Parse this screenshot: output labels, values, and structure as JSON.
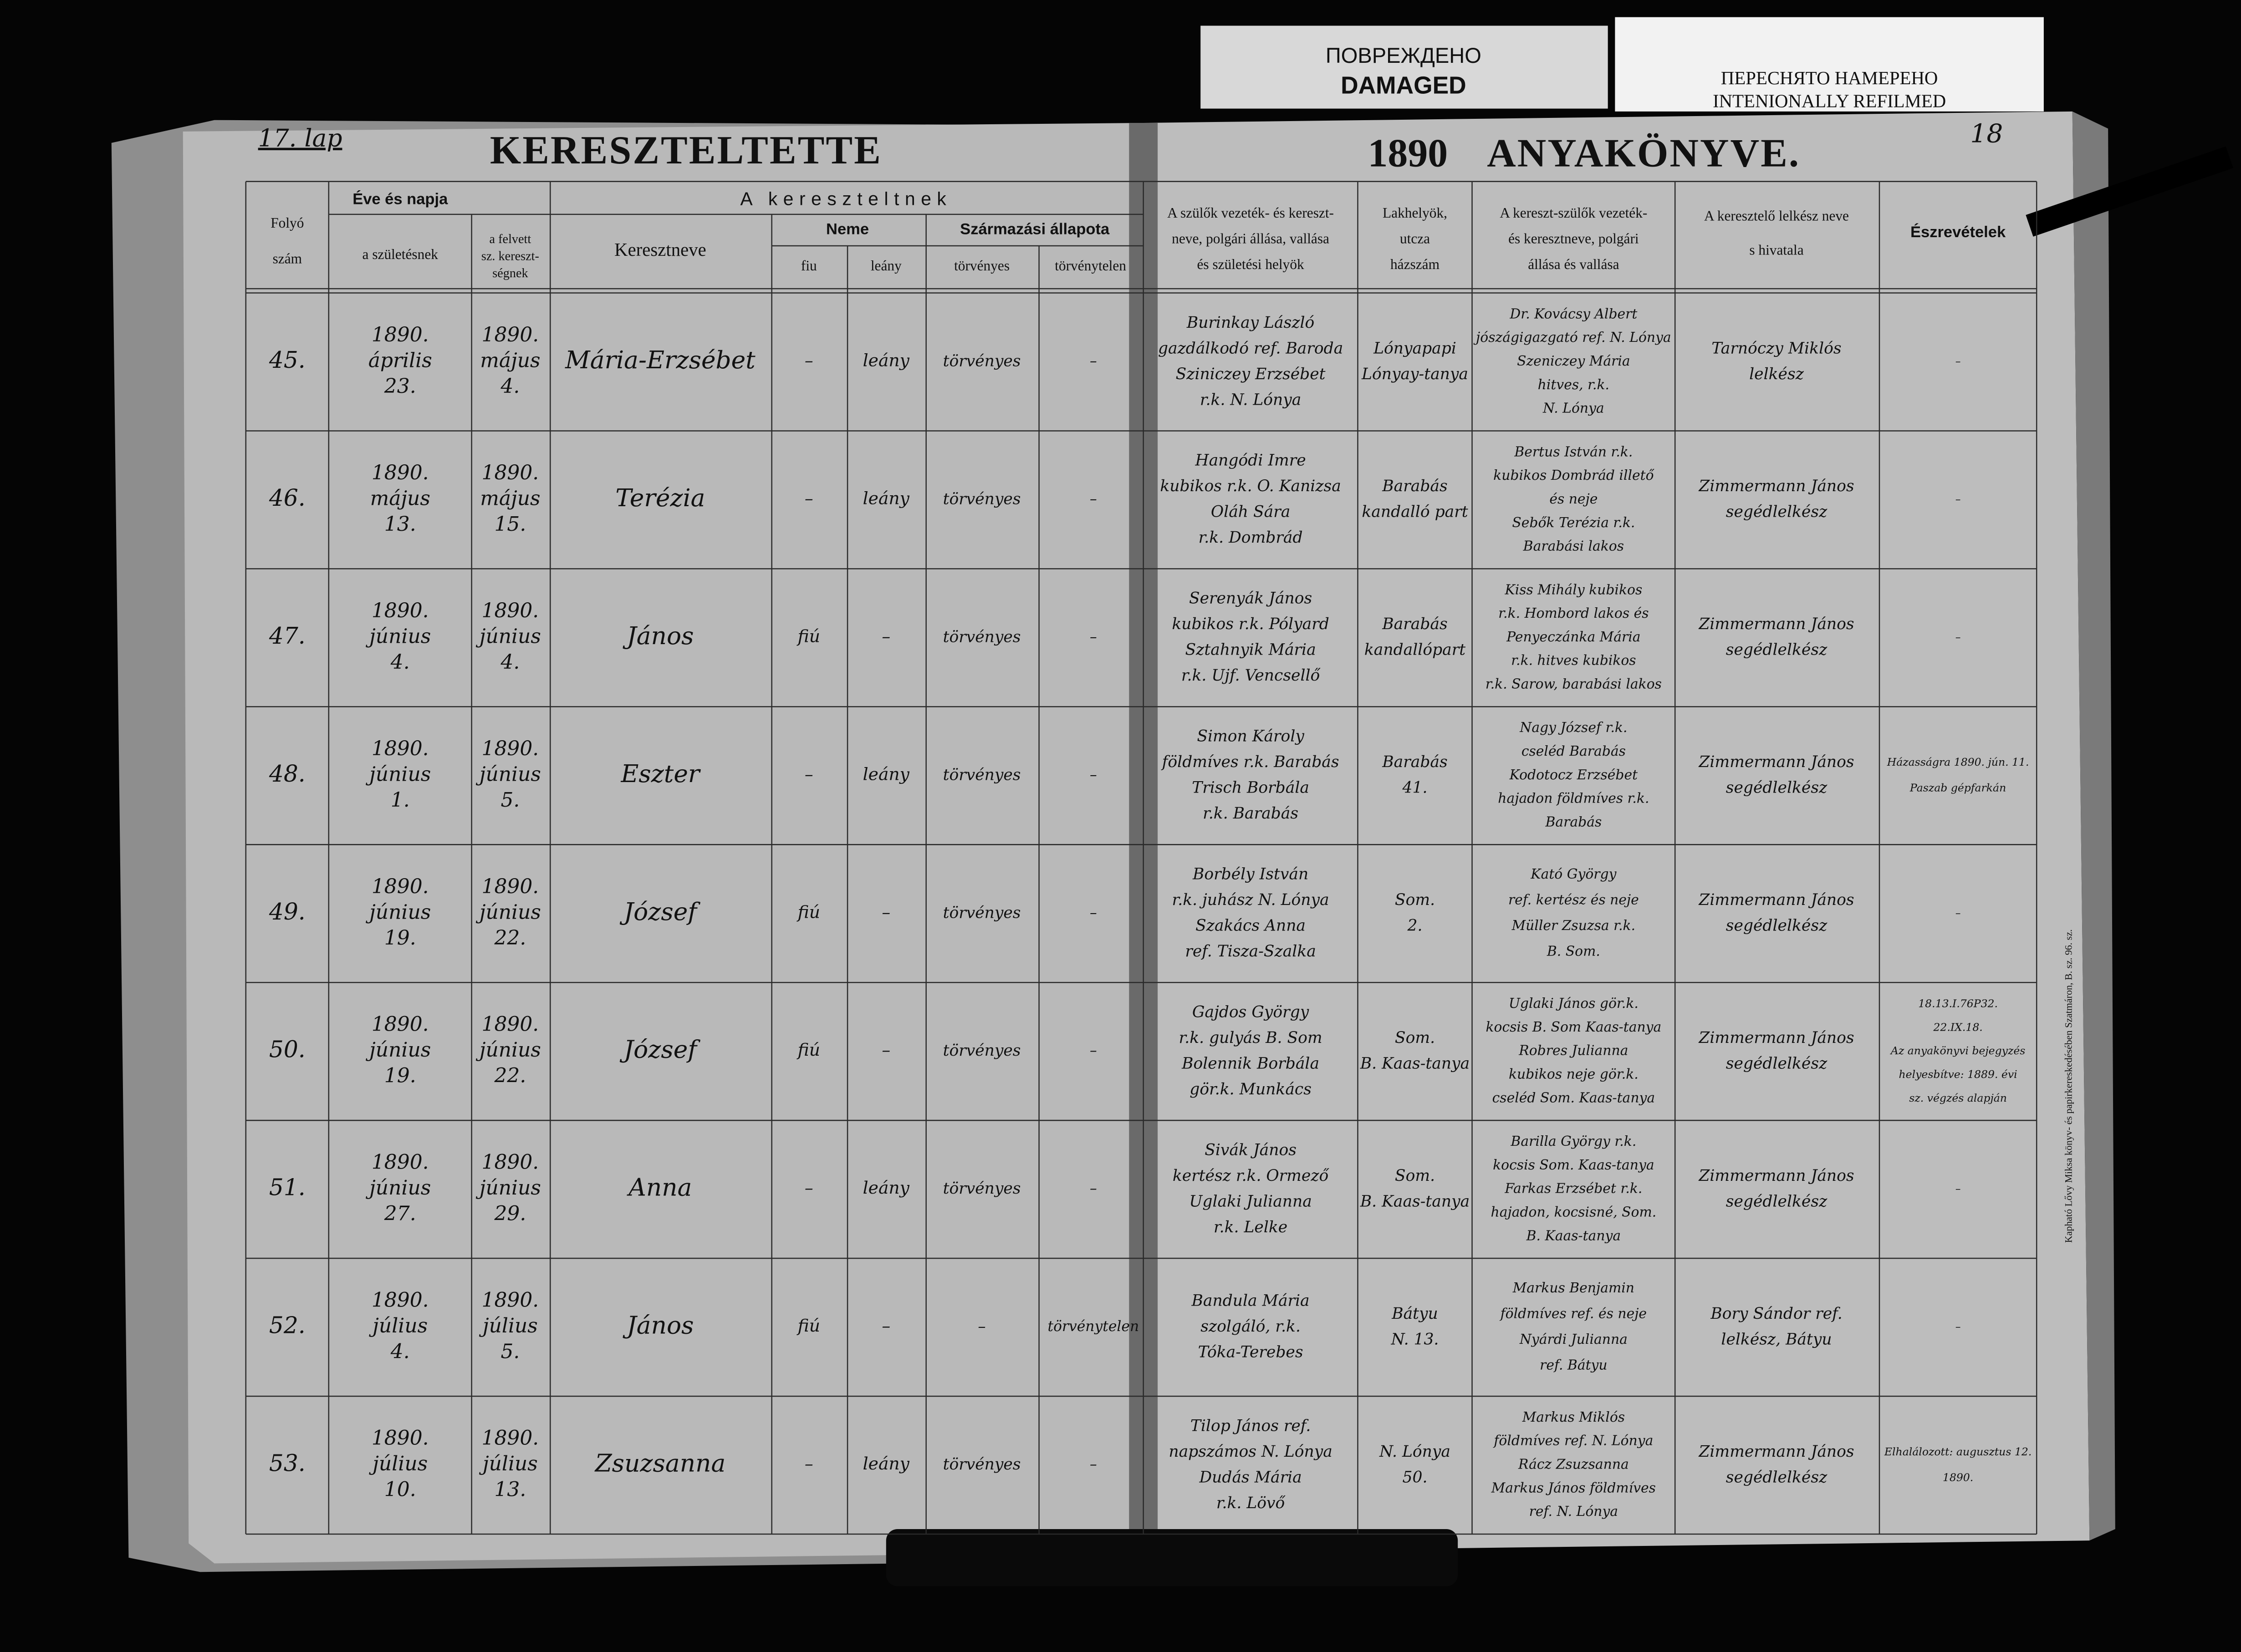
{
  "stamps": {
    "damaged": [
      "ПОВРЕЖДЕНО",
      "DAMAGED"
    ],
    "refilmed": [
      "ПЕРЕСНЯТО НАМЕРЕНО",
      "INTENIONALLY REFILMED"
    ]
  },
  "header": {
    "page_label": "17. lap",
    "title_left": "KERESZTELTETTE",
    "year": "1890",
    "title_right": "ANYAKÖNYVE.",
    "page_mark": "18"
  },
  "column_headers": {
    "number": [
      "Folyó",
      "szám"
    ],
    "date_group": [
      "Éve és napja"
    ],
    "birth": [
      "a születésnek"
    ],
    "baptism": [
      "a felvett",
      "sz. kereszt-",
      "ségnek"
    ],
    "child_group": [
      "A kereszteltnek"
    ],
    "name": [
      "Keresztneve"
    ],
    "sex_group": [
      "Neme"
    ],
    "male": [
      "fiu"
    ],
    "female": [
      "leány"
    ],
    "status_group": [
      "Származási állapota"
    ],
    "legitimate": [
      "törvényes"
    ],
    "illegitimate": [
      "törvénytelen"
    ],
    "parents": [
      "A szülők vezeték- és kereszt-",
      "neve, polgári állása, vallása",
      "és születési helyök"
    ],
    "residence": [
      "Lakhelyök,",
      "utcza",
      "házszám"
    ],
    "godparents": [
      "A kereszt-szülők vezeték-",
      "és keresztneve, polgári",
      "állása és vallása"
    ],
    "priest": [
      "A keresztelő lelkész neve",
      "s hivatala"
    ],
    "notes": [
      "Észrevételek"
    ]
  },
  "rows": [
    {
      "number": "45.",
      "birth": [
        "1890.",
        "április",
        "23."
      ],
      "baptism": [
        "1890.",
        "május",
        "4."
      ],
      "name": "Mária-Erzsébet",
      "male": "–",
      "female": "leány",
      "legitimate": "törvényes",
      "illegitimate": "–",
      "parents": [
        "Burinkay László",
        "gazdálkodó ref. Baroda",
        "Sziniczey Erzsébet",
        "r.k. N. Lónya"
      ],
      "residence": [
        "Lónyapapi",
        "Lónyay-tanya"
      ],
      "godparents": [
        "Dr. Kovácsy Albert",
        "jószágigazgató ref. N. Lónya",
        "Szeniczey Mária",
        "hitves, r.k.",
        "N. Lónya"
      ],
      "priest": [
        "Tarnóczy Miklós",
        "lelkész"
      ],
      "notes": [
        "–"
      ]
    },
    {
      "number": "46.",
      "birth": [
        "1890.",
        "május",
        "13."
      ],
      "baptism": [
        "1890.",
        "május",
        "15."
      ],
      "name": "Terézia",
      "male": "–",
      "female": "leány",
      "legitimate": "törvényes",
      "illegitimate": "–",
      "parents": [
        "Hangódi Imre",
        "kubikos r.k. O. Kanizsa",
        "Oláh Sára",
        "r.k. Dombrád"
      ],
      "residence": [
        "Barabás",
        "kandalló part"
      ],
      "godparents": [
        "Bertus István r.k.",
        "kubikos Dombrád illető",
        "és neje",
        "Sebők Terézia r.k.",
        "Barabási lakos"
      ],
      "priest": [
        "Zimmermann János",
        "segédlelkész"
      ],
      "notes": [
        "–"
      ]
    },
    {
      "number": "47.",
      "birth": [
        "1890.",
        "június",
        "4."
      ],
      "baptism": [
        "1890.",
        "június",
        "4."
      ],
      "name": "János",
      "male": "fiú",
      "female": "–",
      "legitimate": "törvényes",
      "illegitimate": "–",
      "parents": [
        "Serenyák János",
        "kubikos r.k. Pólyard",
        "Sztahnyik Mária",
        "r.k. Ujf. Vencsellő"
      ],
      "residence": [
        "Barabás",
        "kandallópart"
      ],
      "godparents": [
        "Kiss Mihály kubikos",
        "r.k. Hombord lakos és",
        "Penyeczánka Mária",
        "r.k. hitves kubikos",
        "r.k. Sarow, barabási lakos"
      ],
      "priest": [
        "Zimmermann János",
        "segédlelkész"
      ],
      "notes": [
        "–"
      ]
    },
    {
      "number": "48.",
      "birth": [
        "1890.",
        "június",
        "1."
      ],
      "baptism": [
        "1890.",
        "június",
        "5."
      ],
      "name": "Eszter",
      "male": "–",
      "female": "leány",
      "legitimate": "törvényes",
      "illegitimate": "–",
      "parents": [
        "Simon Károly",
        "földmíves r.k. Barabás",
        "Trisch Borbála",
        "r.k. Barabás"
      ],
      "residence": [
        "Barabás",
        "41."
      ],
      "godparents": [
        "Nagy József r.k.",
        "cseléd Barabás",
        "Kodotocz Erzsébet",
        "hajadon földmíves r.k.",
        "Barabás"
      ],
      "priest": [
        "Zimmermann János",
        "segédlelkész"
      ],
      "notes": [
        "Házasságra 1890. jún. 11.",
        "Paszab gépfarkán"
      ]
    },
    {
      "number": "49.",
      "birth": [
        "1890.",
        "június",
        "19."
      ],
      "baptism": [
        "1890.",
        "június",
        "22."
      ],
      "name": "József",
      "male": "fiú",
      "female": "–",
      "legitimate": "törvényes",
      "illegitimate": "–",
      "parents": [
        "Borbély István",
        "r.k. juhász N. Lónya",
        "Szakács Anna",
        "ref. Tisza-Szalka"
      ],
      "residence": [
        "Som.",
        "2."
      ],
      "godparents": [
        "Kató György",
        "ref. kertész és neje",
        "Müller Zsuzsa r.k.",
        "B. Som."
      ],
      "priest": [
        "Zimmermann János",
        "segédlelkész"
      ],
      "notes": [
        "–"
      ]
    },
    {
      "number": "50.",
      "birth": [
        "1890.",
        "június",
        "19."
      ],
      "baptism": [
        "1890.",
        "június",
        "22."
      ],
      "name": "József",
      "male": "fiú",
      "female": "–",
      "legitimate": "törvényes",
      "illegitimate": "–",
      "parents": [
        "Gajdos György",
        "r.k. gulyás B. Som",
        "Bolennik Borbála",
        "gör.k. Munkács"
      ],
      "residence": [
        "Som.",
        "B. Kaas-tanya"
      ],
      "godparents": [
        "Uglaki János gör.k.",
        "kocsis B. Som Kaas-tanya",
        "Robres Julianna",
        "kubikos neje gör.k.",
        "cseléd Som. Kaas-tanya"
      ],
      "priest": [
        "Zimmermann János",
        "segédlelkész"
      ],
      "notes": [
        "18.13.I.76P32.",
        "22.IX.18.",
        "Az anyakönyvi bejegyzés",
        "helyesbítve: 1889. évi",
        "sz. végzés alapján"
      ]
    },
    {
      "number": "51.",
      "birth": [
        "1890.",
        "június",
        "27."
      ],
      "baptism": [
        "1890.",
        "június",
        "29."
      ],
      "name": "Anna",
      "male": "–",
      "female": "leány",
      "legitimate": "törvényes",
      "illegitimate": "–",
      "parents": [
        "Sivák János",
        "kertész r.k. Ormező",
        "Uglaki Julianna",
        "r.k. Lelke"
      ],
      "residence": [
        "Som.",
        "B. Kaas-tanya"
      ],
      "godparents": [
        "Barilla György r.k.",
        "kocsis Som. Kaas-tanya",
        "Farkas Erzsébet r.k.",
        "hajadon, kocsisné, Som.",
        "B. Kaas-tanya"
      ],
      "priest": [
        "Zimmermann János",
        "segédlelkész"
      ],
      "notes": [
        "–"
      ]
    },
    {
      "number": "52.",
      "birth": [
        "1890.",
        "július",
        "4."
      ],
      "baptism": [
        "1890.",
        "július",
        "5."
      ],
      "name": "János",
      "male": "fiú",
      "female": "–",
      "legitimate": "–",
      "illegitimate": "törvénytelen",
      "parents": [
        "Bandula Mária",
        "szolgáló, r.k.",
        "Tóka-Terebes"
      ],
      "residence": [
        "Bátyu",
        "N. 13."
      ],
      "godparents": [
        "Markus Benjamin",
        "földmíves ref. és neje",
        "Nyárdi Julianna",
        "ref. Bátyu"
      ],
      "priest": [
        "Bory Sándor ref.",
        "lelkész, Bátyu"
      ],
      "notes": [
        "–"
      ]
    },
    {
      "number": "53.",
      "birth": [
        "1890.",
        "július",
        "10."
      ],
      "baptism": [
        "1890.",
        "július",
        "13."
      ],
      "name": "Zsuzsanna",
      "male": "–",
      "female": "leány",
      "legitimate": "törvényes",
      "illegitimate": "–",
      "parents": [
        "Tilop János ref.",
        "napszámos N. Lónya",
        "Dudás Mária",
        "r.k. Lövő"
      ],
      "residence": [
        "N. Lónya",
        "50."
      ],
      "godparents": [
        "Markus Miklós",
        "földmíves ref. N. Lónya",
        "Rácz Zsuzsanna",
        "Markus János földmíves",
        "ref. N. Lónya"
      ],
      "priest": [
        "Zimmermann János",
        "segédlelkész"
      ],
      "notes": [
        "Elhalálozott: augusztus 12.",
        "1890."
      ]
    }
  ],
  "imprint": "Kapható Lővy Miksa könyv- és papirkereskedésében Szatmáron, B. sz. 96. sz."
}
